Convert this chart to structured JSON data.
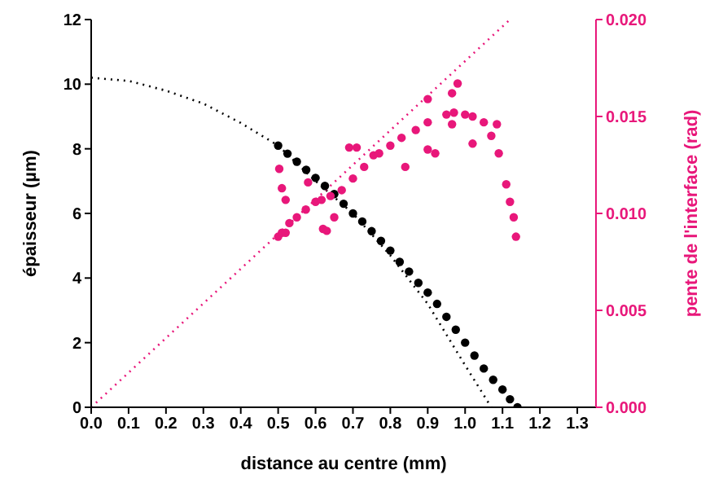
{
  "chart_data": {
    "type": "scatter",
    "xlabel": "distance au centre (mm)",
    "ylabel": "épaisseur (µm)",
    "y2label": "pente de l'interface (rad)",
    "xlim": [
      0,
      1.35
    ],
    "xticks": [
      {
        "value": 0,
        "label": "0.0"
      },
      {
        "value": 0.1,
        "label": "0.1"
      },
      {
        "value": 0.2,
        "label": "0.2"
      },
      {
        "value": 0.3,
        "label": "0.3"
      },
      {
        "value": 0.4,
        "label": "0.4"
      },
      {
        "value": 0.5,
        "label": "0.5"
      },
      {
        "value": 0.6,
        "label": "0.6"
      },
      {
        "value": 0.7,
        "label": "0.7"
      },
      {
        "value": 0.8,
        "label": "0.8"
      },
      {
        "value": 0.9,
        "label": "0.9"
      },
      {
        "value": 1,
        "label": "1.0"
      },
      {
        "value": 1.1,
        "label": "1.1"
      },
      {
        "value": 1.2,
        "label": "1.2"
      },
      {
        "value": 1.3,
        "label": "1.3"
      }
    ],
    "ylim": [
      0,
      12
    ],
    "yticks": [
      0,
      2,
      4,
      6,
      8,
      10,
      12
    ],
    "y2lim": [
      0,
      0.02
    ],
    "y2ticks": [
      {
        "value": 0,
        "label": "0.000"
      },
      {
        "value": 0.005,
        "label": "0.005"
      },
      {
        "value": 0.01,
        "label": "0.010"
      },
      {
        "value": 0.015,
        "label": "0.015"
      },
      {
        "value": 0.02,
        "label": "0.020"
      }
    ],
    "series": [
      {
        "type": "line",
        "color": "#000000",
        "line_style": "dotted",
        "marker": "none",
        "x": [
          0,
          0.1,
          0.2,
          0.3,
          0.4,
          0.5,
          0.6,
          0.7,
          0.8,
          0.9,
          1.0,
          1.07
        ],
        "values": [
          10.2,
          10.1,
          9.8,
          9.4,
          8.8,
          8.1,
          7.0,
          6.0,
          4.7,
          3.2,
          1.3,
          0
        ]
      },
      {
        "color": "#000000",
        "marker": "circle",
        "x": [
          0.5,
          0.525,
          0.55,
          0.575,
          0.6,
          0.625,
          0.65,
          0.675,
          0.7,
          0.725,
          0.75,
          0.775,
          0.8,
          0.825,
          0.85,
          0.875,
          0.9,
          0.925,
          0.95,
          0.975,
          1.0,
          1.025,
          1.05,
          1.075,
          1.1,
          1.12,
          1.14
        ],
        "values": [
          8.1,
          7.85,
          7.6,
          7.35,
          7.1,
          6.85,
          6.6,
          6.3,
          6.0,
          5.75,
          5.45,
          5.15,
          4.85,
          4.5,
          4.2,
          3.85,
          3.55,
          3.2,
          2.8,
          2.4,
          2.0,
          1.6,
          1.2,
          0.85,
          0.55,
          0.25,
          0
        ]
      },
      {
        "color": "#e8177a",
        "axis": "y2",
        "marker": "circle",
        "x": [
          0.5,
          0.51,
          0.52,
          0.55,
          0.574,
          0.6,
          0.616,
          0.64,
          0.67,
          0.7,
          0.73,
          0.755,
          0.77,
          0.8,
          0.83,
          0.868,
          0.9,
          0.95,
          0.97,
          1.0,
          1.02,
          1.05,
          1.07,
          1.09,
          1.11,
          1.12,
          1.13,
          1.136,
          0.503,
          0.51,
          0.52,
          0.53,
          0.58,
          0.62,
          0.63,
          0.65,
          0.69,
          0.71,
          0.84,
          0.9,
          0.92,
          0.9,
          0.965,
          0.98,
          1.02,
          1.085,
          0.965
        ],
        "values": [
          0.0088,
          0.009,
          0.009,
          0.0098,
          0.0102,
          0.0106,
          0.0107,
          0.0109,
          0.0112,
          0.0118,
          0.0124,
          0.013,
          0.0131,
          0.0135,
          0.0139,
          0.0143,
          0.0147,
          0.0151,
          0.0152,
          0.0151,
          0.015,
          0.0147,
          0.014,
          0.0131,
          0.0115,
          0.0106,
          0.0098,
          0.0088,
          0.0123,
          0.0113,
          0.0107,
          0.0095,
          0.0116,
          0.0092,
          0.0091,
          0.0098,
          0.0134,
          0.0134,
          0.0124,
          0.0133,
          0.0131,
          0.0159,
          0.0162,
          0.0167,
          0.0136,
          0.0146,
          0.0146
        ]
      },
      {
        "type": "line",
        "color": "#e8177a",
        "axis": "y2",
        "line_style": "dotted",
        "marker": "none",
        "x": [
          0,
          1.12
        ],
        "values": [
          0,
          0.02
        ]
      }
    ]
  }
}
